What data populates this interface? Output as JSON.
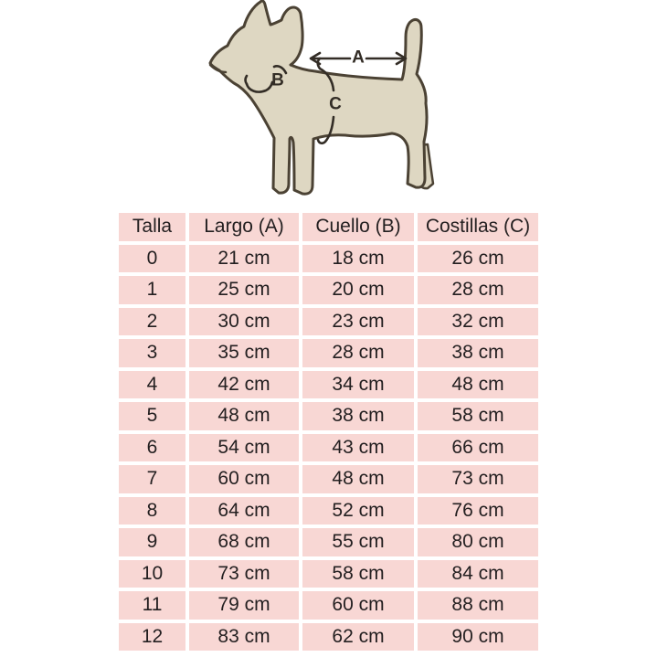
{
  "diagram": {
    "label_a": "A",
    "label_b": "B",
    "label_c": "C"
  },
  "chart_data": {
    "type": "table",
    "columns": [
      "Talla",
      "Largo (A)",
      "Cuello (B)",
      "Costillas (C)"
    ],
    "rows": [
      [
        "0",
        "21 cm",
        "18 cm",
        "26 cm"
      ],
      [
        "1",
        "25 cm",
        "20 cm",
        "28 cm"
      ],
      [
        "2",
        "30 cm",
        "23 cm",
        "32 cm"
      ],
      [
        "3",
        "35 cm",
        "28 cm",
        "38 cm"
      ],
      [
        "4",
        "42 cm",
        "34 cm",
        "48 cm"
      ],
      [
        "5",
        "48 cm",
        "38 cm",
        "58 cm"
      ],
      [
        "6",
        "54 cm",
        "43 cm",
        "66 cm"
      ],
      [
        "7",
        "60 cm",
        "48 cm",
        "73 cm"
      ],
      [
        "8",
        "64 cm",
        "52 cm",
        "76 cm"
      ],
      [
        "9",
        "68 cm",
        "55 cm",
        "80 cm"
      ],
      [
        "10",
        "73 cm",
        "58 cm",
        "84 cm"
      ],
      [
        "11",
        "79 cm",
        "60 cm",
        "88 cm"
      ],
      [
        "12",
        "83 cm",
        "62 cm",
        "90 cm"
      ]
    ]
  },
  "colors": {
    "cell_pink": "#f8d7d4",
    "table_text": "#231f20",
    "dog_fill": "#ded7c2",
    "dog_outline": "#4b4234",
    "annotation": "#332d26",
    "background": "#ffffff"
  }
}
